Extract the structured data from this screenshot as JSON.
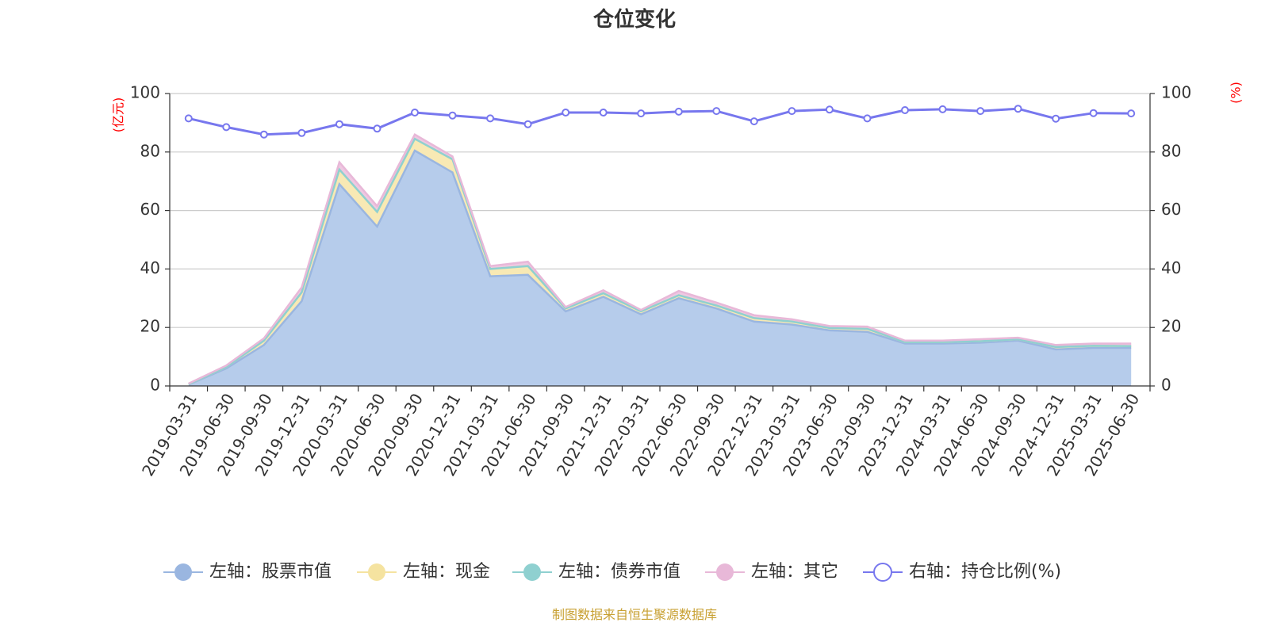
{
  "chart_data": {
    "type": "area",
    "title": "仓位变化",
    "left_unit": "(亿元)",
    "right_unit": "(%)",
    "yticks_left": [
      "0",
      "20",
      "40",
      "60",
      "80",
      "100"
    ],
    "yticks_right": [
      "0",
      "20",
      "40",
      "60",
      "80",
      "100"
    ],
    "ylim_left": [
      0,
      100
    ],
    "ylim_right": [
      0,
      100
    ],
    "grid": true,
    "legend_position": "bottom",
    "categories": [
      "2019-03-31",
      "2019-06-30",
      "2019-09-30",
      "2019-12-31",
      "2020-03-31",
      "2020-06-30",
      "2020-09-30",
      "2020-12-31",
      "2021-03-31",
      "2021-06-30",
      "2021-09-30",
      "2021-12-31",
      "2022-03-31",
      "2022-06-30",
      "2022-09-30",
      "2022-12-31",
      "2023-03-31",
      "2023-06-30",
      "2023-09-30",
      "2023-12-31",
      "2024-03-31",
      "2024-06-30",
      "2024-09-30",
      "2024-12-31",
      "2025-03-31",
      "2025-06-30"
    ],
    "series": [
      {
        "name": "左轴：股票市值",
        "axis": "left",
        "kind": "area",
        "color": "#9ab6e0",
        "fill": "#b6cceb",
        "values": [
          0.5,
          6,
          14,
          29,
          69,
          54.5,
          80.5,
          73,
          37.5,
          38,
          25.5,
          30.5,
          24.5,
          30,
          26.5,
          22,
          21,
          19,
          18.5,
          14.5,
          14.5,
          14.8,
          15.5,
          12.5,
          13,
          13
        ]
      },
      {
        "name": "左轴：现金",
        "axis": "left",
        "kind": "area",
        "color": "#f5e3a0",
        "fill": "#f8e9b4",
        "values": [
          0.1,
          0.5,
          1.5,
          3,
          5,
          5,
          4,
          4.5,
          2.5,
          3,
          1,
          1.2,
          1,
          1,
          1,
          1.2,
          1,
          0.8,
          1,
          0.5,
          0.5,
          0.5,
          0.5,
          0.8,
          0.7,
          0.6
        ]
      },
      {
        "name": "左轴：债券市值",
        "axis": "left",
        "kind": "area",
        "color": "#8fd0d0",
        "fill": "#9fd8d8",
        "values": [
          0,
          0,
          0,
          0,
          0,
          0,
          0,
          0,
          0,
          0,
          0,
          0,
          0,
          0,
          0,
          0,
          0,
          0,
          0,
          0,
          0,
          0,
          0,
          0,
          0,
          0
        ]
      },
      {
        "name": "左轴：其它",
        "axis": "left",
        "kind": "area",
        "color": "#e8b8d8",
        "fill": "#efc8e2",
        "values": [
          0.2,
          0.5,
          0.8,
          1.7,
          2.5,
          2,
          1.5,
          1,
          1,
          1.5,
          0.5,
          1,
          0.5,
          1.5,
          1,
          1,
          0.8,
          0.7,
          0.8,
          0.5,
          0.5,
          0.7,
          0.5,
          0.7,
          0.8,
          0.9
        ]
      },
      {
        "name": "右轴：持仓比例(%)",
        "axis": "right",
        "kind": "line",
        "color": "#7777ee",
        "values": [
          91.5,
          88.5,
          86,
          86.5,
          89.5,
          88,
          93.5,
          92.5,
          91.5,
          89.5,
          93.5,
          93.5,
          93.2,
          93.8,
          94,
          90.5,
          94,
          94.5,
          91.5,
          94.3,
          94.6,
          94,
          94.8,
          91.4,
          93.3,
          93.2
        ]
      }
    ]
  },
  "footer": {
    "source": "制图数据来自恒生聚源数据库"
  }
}
